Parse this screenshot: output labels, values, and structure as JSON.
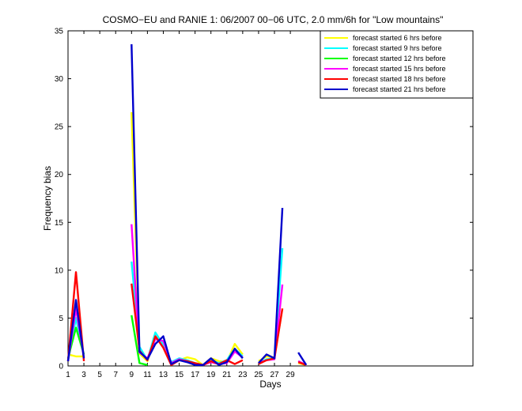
{
  "chart_data": {
    "type": "line",
    "title": "COSMO−EU and RANIE 1: 06/2007 00−06 UTC, 2.0 mm/6h for \"Low mountains\"",
    "xlabel": "Days",
    "ylabel": "Frequency bias",
    "xlim": [
      1,
      52
    ],
    "ylim": [
      0,
      35
    ],
    "x_ticks": [
      1,
      3,
      5,
      7,
      9,
      11,
      13,
      15,
      17,
      19,
      21,
      23,
      25,
      27,
      29
    ],
    "y_ticks": [
      0,
      5,
      10,
      15,
      20,
      25,
      30,
      35
    ],
    "legend_position": "top-right",
    "grid": false,
    "series": [
      {
        "name": "forecast started 6 hrs before",
        "color": "#ffff00",
        "values": [
          1.2,
          1.0,
          1.0,
          null,
          null,
          null,
          null,
          null,
          26.5,
          1.3,
          0.5,
          3.0,
          2.5,
          0.2,
          0.6,
          0.9,
          0.7,
          0.1,
          0.8,
          0.5,
          0.4,
          2.3,
          1.2,
          null,
          0.5,
          1.0,
          0.9,
          6.0,
          null,
          0.3,
          0.1
        ]
      },
      {
        "name": "forecast started 9 hrs before",
        "color": "#00ffff",
        "values": [
          0.5,
          5.0,
          1.2,
          null,
          null,
          null,
          null,
          null,
          10.9,
          2.0,
          0.6,
          3.5,
          2.2,
          0.4,
          0.8,
          0.6,
          0.3,
          0.1,
          0.6,
          0.3,
          0.6,
          1.8,
          1.0,
          null,
          0.3,
          0.7,
          0.8,
          12.3,
          null,
          0.5,
          0.1
        ]
      },
      {
        "name": "forecast started 12 hrs before",
        "color": "#00ff00",
        "values": [
          0.8,
          4.0,
          1.2,
          null,
          null,
          null,
          null,
          null,
          5.3,
          0.3,
          0.1,
          null,
          null,
          null,
          null,
          null,
          null,
          null,
          null,
          null,
          null,
          null,
          null,
          null,
          null,
          null,
          null,
          null,
          null,
          null,
          null
        ]
      },
      {
        "name": "forecast started 15 hrs before",
        "color": "#ff00ff",
        "values": [
          0.5,
          6.0,
          0.9,
          null,
          null,
          null,
          null,
          null,
          14.8,
          1.4,
          0.8,
          2.8,
          2.6,
          0.3,
          0.7,
          0.5,
          0.2,
          0.1,
          0.4,
          0.2,
          0.3,
          1.5,
          0.9,
          null,
          0.3,
          0.6,
          0.7,
          8.5,
          null,
          0.5,
          0.1
        ]
      },
      {
        "name": "forecast started 18 hrs before",
        "color": "#ff0000",
        "values": [
          0.5,
          9.8,
          0.5,
          null,
          null,
          null,
          null,
          null,
          8.6,
          1.6,
          0.6,
          3.1,
          1.9,
          0.1,
          0.6,
          0.5,
          0.3,
          0.1,
          0.5,
          0.2,
          0.6,
          0.2,
          0.6,
          null,
          0.2,
          0.6,
          0.8,
          6.0,
          null,
          0.4,
          0.1
        ]
      },
      {
        "name": "forecast started 21 hrs before",
        "color": "#0000cc",
        "values": [
          0.5,
          6.9,
          0.8,
          null,
          null,
          null,
          null,
          null,
          33.6,
          1.5,
          0.7,
          2.3,
          3.1,
          0.2,
          0.6,
          0.4,
          0.1,
          0.1,
          0.8,
          0.1,
          0.4,
          1.8,
          0.8,
          null,
          0.3,
          1.2,
          0.8,
          16.5,
          null,
          1.4,
          0.1
        ]
      }
    ]
  }
}
